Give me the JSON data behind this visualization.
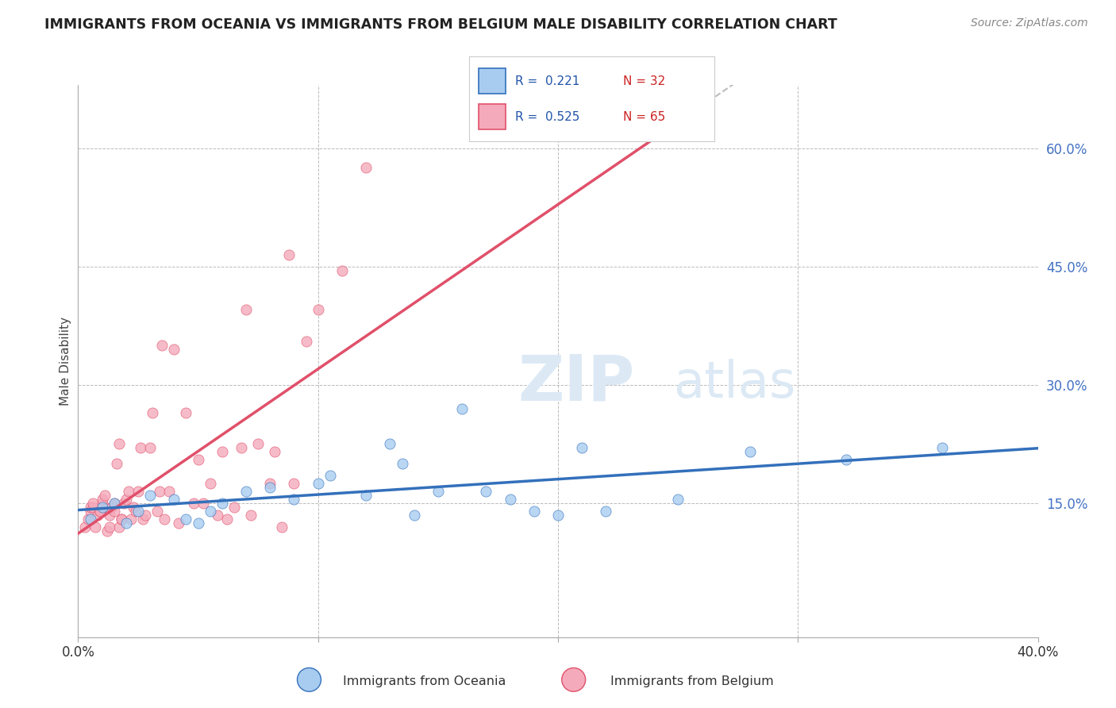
{
  "title": "IMMIGRANTS FROM OCEANIA VS IMMIGRANTS FROM BELGIUM MALE DISABILITY CORRELATION CHART",
  "source_text": "Source: ZipAtlas.com",
  "ylabel": "Male Disability",
  "xlim": [
    0.0,
    0.4
  ],
  "ylim": [
    -0.02,
    0.68
  ],
  "x_ticks": [
    0.0,
    0.1,
    0.2,
    0.3,
    0.4
  ],
  "x_tick_labels": [
    "0.0%",
    "",
    "",
    "",
    "40.0%"
  ],
  "y_ticks_right": [
    0.6,
    0.45,
    0.3,
    0.15
  ],
  "y_tick_labels_right": [
    "60.0%",
    "45.0%",
    "30.0%",
    "15.0%"
  ],
  "color_oceania": "#A8CCF0",
  "color_belgium": "#F4AABB",
  "color_line_oceania": "#3370BB",
  "color_line_belgium": "#E0506A",
  "background_color": "#FFFFFF",
  "watermark_color": "#DCE9F5",
  "oceania_x": [
    0.005,
    0.01,
    0.015,
    0.02,
    0.025,
    0.03,
    0.04,
    0.045,
    0.05,
    0.055,
    0.06,
    0.07,
    0.08,
    0.09,
    0.1,
    0.105,
    0.12,
    0.13,
    0.135,
    0.14,
    0.15,
    0.16,
    0.17,
    0.18,
    0.19,
    0.2,
    0.21,
    0.22,
    0.25,
    0.28,
    0.32,
    0.36
  ],
  "oceania_y": [
    0.13,
    0.145,
    0.15,
    0.125,
    0.14,
    0.16,
    0.155,
    0.13,
    0.125,
    0.14,
    0.15,
    0.165,
    0.17,
    0.155,
    0.175,
    0.185,
    0.16,
    0.225,
    0.2,
    0.135,
    0.165,
    0.27,
    0.165,
    0.155,
    0.14,
    0.135,
    0.22,
    0.14,
    0.155,
    0.215,
    0.205,
    0.22
  ],
  "belgium_x": [
    0.003,
    0.004,
    0.005,
    0.005,
    0.006,
    0.006,
    0.007,
    0.008,
    0.009,
    0.009,
    0.01,
    0.01,
    0.011,
    0.012,
    0.013,
    0.013,
    0.014,
    0.015,
    0.015,
    0.016,
    0.017,
    0.017,
    0.018,
    0.018,
    0.019,
    0.02,
    0.021,
    0.022,
    0.023,
    0.024,
    0.025,
    0.026,
    0.027,
    0.028,
    0.03,
    0.031,
    0.033,
    0.034,
    0.035,
    0.036,
    0.038,
    0.04,
    0.042,
    0.045,
    0.048,
    0.05,
    0.052,
    0.055,
    0.058,
    0.06,
    0.062,
    0.065,
    0.068,
    0.07,
    0.072,
    0.075,
    0.08,
    0.082,
    0.085,
    0.088,
    0.09,
    0.095,
    0.1,
    0.11,
    0.12
  ],
  "belgium_y": [
    0.12,
    0.13,
    0.14,
    0.145,
    0.145,
    0.15,
    0.12,
    0.135,
    0.14,
    0.14,
    0.15,
    0.155,
    0.16,
    0.115,
    0.12,
    0.135,
    0.145,
    0.14,
    0.15,
    0.2,
    0.225,
    0.12,
    0.13,
    0.13,
    0.15,
    0.155,
    0.165,
    0.13,
    0.145,
    0.14,
    0.165,
    0.22,
    0.13,
    0.135,
    0.22,
    0.265,
    0.14,
    0.165,
    0.35,
    0.13,
    0.165,
    0.345,
    0.125,
    0.265,
    0.15,
    0.205,
    0.15,
    0.175,
    0.135,
    0.215,
    0.13,
    0.145,
    0.22,
    0.395,
    0.135,
    0.225,
    0.175,
    0.215,
    0.12,
    0.465,
    0.175,
    0.355,
    0.395,
    0.445,
    0.575
  ]
}
